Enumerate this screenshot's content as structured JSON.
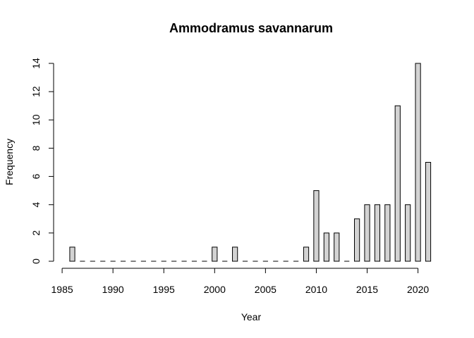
{
  "chart_data": {
    "type": "bar",
    "title": "Ammodramus savannarum",
    "xlabel": "Year",
    "ylabel": "Frequency",
    "bar_color": "#d3d3d3",
    "stroke_color": "#000000",
    "x_range": [
      1986,
      2021
    ],
    "ylim": [
      0,
      14
    ],
    "x_ticks": [
      1985,
      1990,
      1995,
      2000,
      2005,
      2010,
      2015,
      2020
    ],
    "y_ticks": [
      0,
      2,
      4,
      6,
      8,
      10,
      12,
      14
    ],
    "x": [
      1986,
      1987,
      1988,
      1989,
      1990,
      1991,
      1992,
      1993,
      1994,
      1995,
      1996,
      1997,
      1998,
      1999,
      2000,
      2001,
      2002,
      2003,
      2004,
      2005,
      2006,
      2007,
      2008,
      2009,
      2010,
      2011,
      2012,
      2013,
      2014,
      2015,
      2016,
      2017,
      2018,
      2019,
      2020,
      2021
    ],
    "values": [
      1,
      0,
      0,
      0,
      0,
      0,
      0,
      0,
      0,
      0,
      0,
      0,
      0,
      0,
      1,
      0,
      1,
      0,
      0,
      0,
      0,
      0,
      0,
      1,
      5,
      2,
      2,
      0,
      3,
      4,
      4,
      4,
      11,
      4,
      14,
      7
    ]
  }
}
